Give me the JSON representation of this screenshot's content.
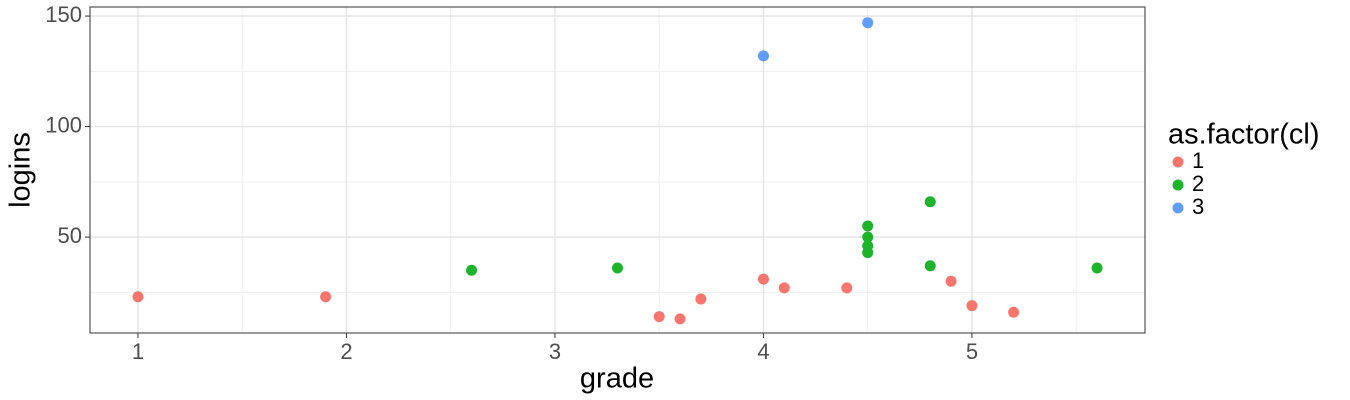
{
  "chart_data": {
    "type": "scatter",
    "x_label": "grade",
    "y_label": "logins",
    "legend_title": "as.factor(cl)",
    "legend": "right",
    "grid": true,
    "xlim": [
      0.77,
      5.83
    ],
    "xticks": [
      1,
      2,
      3,
      4,
      5
    ],
    "ylim": [
      6.6,
      154.1
    ],
    "yticks": [
      50,
      100,
      150
    ],
    "series": [
      {
        "name": "1",
        "color": "#f8766d",
        "x": [
          1,
          1.9,
          3.5,
          3.6,
          3.7,
          4.0,
          4.1,
          4.4,
          4.9,
          5.0,
          5.2
        ],
        "values": [
          23,
          23,
          14,
          13,
          22,
          31,
          27,
          27,
          30,
          19,
          16
        ]
      },
      {
        "name": "2",
        "color": "#1db32a",
        "x": [
          2.6,
          3.3,
          4.5,
          4.5,
          4.5,
          4.5,
          4.8,
          4.8,
          5.6
        ],
        "values": [
          35,
          36,
          55,
          50,
          46,
          43,
          66,
          37,
          36
        ]
      },
      {
        "name": "3",
        "color": "#619cff",
        "x": [
          4.0,
          4.5
        ],
        "values": [
          132,
          147
        ]
      }
    ]
  }
}
